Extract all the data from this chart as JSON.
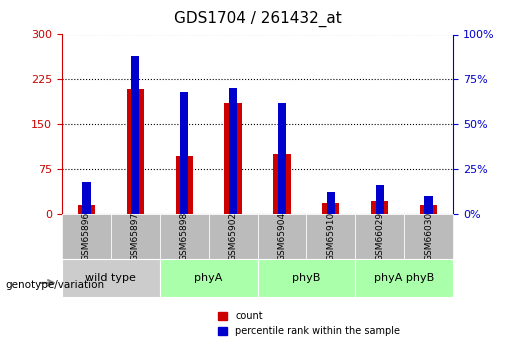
{
  "title": "GDS1704 / 261432_at",
  "samples": [
    "GSM65896",
    "GSM65897",
    "GSM65898",
    "GSM65902",
    "GSM65904",
    "GSM65910",
    "GSM66029",
    "GSM66030"
  ],
  "count_values": [
    15,
    209,
    97,
    185,
    100,
    18,
    22,
    15
  ],
  "percentile_values": [
    18,
    88,
    68,
    70,
    62,
    12,
    16,
    10
  ],
  "groups": [
    {
      "label": "wild type",
      "start": 0,
      "end": 2,
      "color": "#cccccc"
    },
    {
      "label": "phyA",
      "start": 2,
      "end": 4,
      "color": "#aaffaa"
    },
    {
      "label": "phyB",
      "start": 4,
      "end": 6,
      "color": "#aaffaa"
    },
    {
      "label": "phyA phyB",
      "start": 6,
      "end": 8,
      "color": "#aaffaa"
    }
  ],
  "left_ylim": [
    0,
    300
  ],
  "right_ylim": [
    0,
    100
  ],
  "left_yticks": [
    0,
    75,
    150,
    225,
    300
  ],
  "right_yticks": [
    0,
    25,
    50,
    75,
    100
  ],
  "bar_color_red": "#cc0000",
  "bar_color_blue": "#0000cc",
  "bar_width": 0.35,
  "group_label_prefix": "genotype/variation",
  "legend_count": "count",
  "legend_percentile": "percentile rank within the sample",
  "background_color": "#ffffff",
  "plot_bg_color": "#ffffff",
  "xlabel_color": "#000000",
  "left_axis_color": "#cc0000",
  "right_axis_color": "#0000cc",
  "grid_color": "#000000",
  "sample_box_color": "#bbbbbb"
}
